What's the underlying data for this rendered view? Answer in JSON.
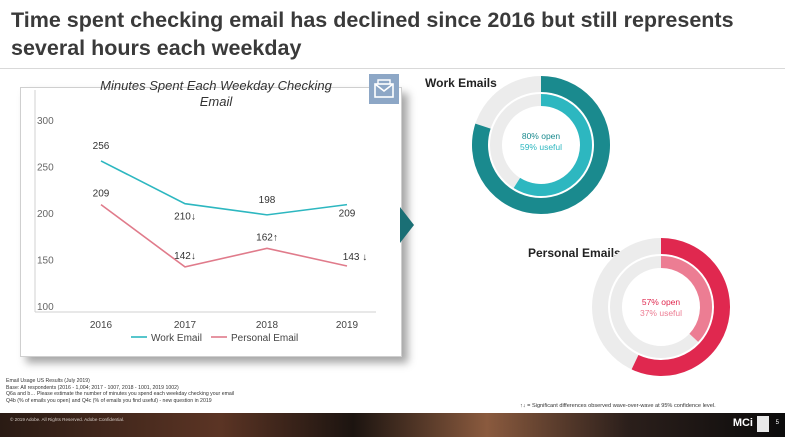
{
  "title": "Time spent checking email has declined since 2016 but still represents several hours each weekday",
  "chart_data": {
    "type": "line",
    "title": "Minutes Spent Each Weekday Checking Email",
    "categories": [
      "2016",
      "2017",
      "2018",
      "2019"
    ],
    "ylim": [
      100,
      300
    ],
    "yticks": [
      "100",
      "150",
      "200",
      "250",
      "300"
    ],
    "series": [
      {
        "name": "Work Email",
        "values": [
          256,
          210,
          198,
          209
        ],
        "labels": [
          "256",
          "210↓",
          "198",
          "209"
        ],
        "color": "#2db7c0"
      },
      {
        "name": "Personal Email",
        "values": [
          209,
          142,
          162,
          143
        ],
        "labels": [
          "209",
          "142↓",
          "162↑",
          "143 ↓"
        ],
        "color": "#e07b8b"
      }
    ],
    "legend": "bottom"
  },
  "donuts": {
    "work": {
      "label": "Work Emails",
      "open_text": "80% open",
      "useful_text": "59% useful",
      "open": 80,
      "useful": 59,
      "outer_color": "#1a8a8e",
      "inner_color": "#2db7c0"
    },
    "personal": {
      "label": "Personal Emails",
      "open_text": "57% open",
      "useful_text": "37% useful",
      "open": 57,
      "useful": 37,
      "outer_color": "#e0284f",
      "inner_color": "#ec7d93"
    }
  },
  "footnotes": [
    "Email Usage US Results (July 2019)",
    "Base: All respondents (2016 - 1,004; 2017 - 1007, 2018 - 1001, 2019 1002)",
    "Q6a and b… Please estimate the number of minutes you spend each weekday checking your email",
    "Q4b (% of emails you open) and Q4c (% of emails you find useful) - new question in 2019"
  ],
  "significance_note": "↑↓ = Significant differences observed wave-over-wave at 95% confidence level.",
  "footer": {
    "copyright": "© 2019 Adobe. All Rights Reserved. Adobe Confidential.",
    "logo": "MCi",
    "page": "5"
  }
}
